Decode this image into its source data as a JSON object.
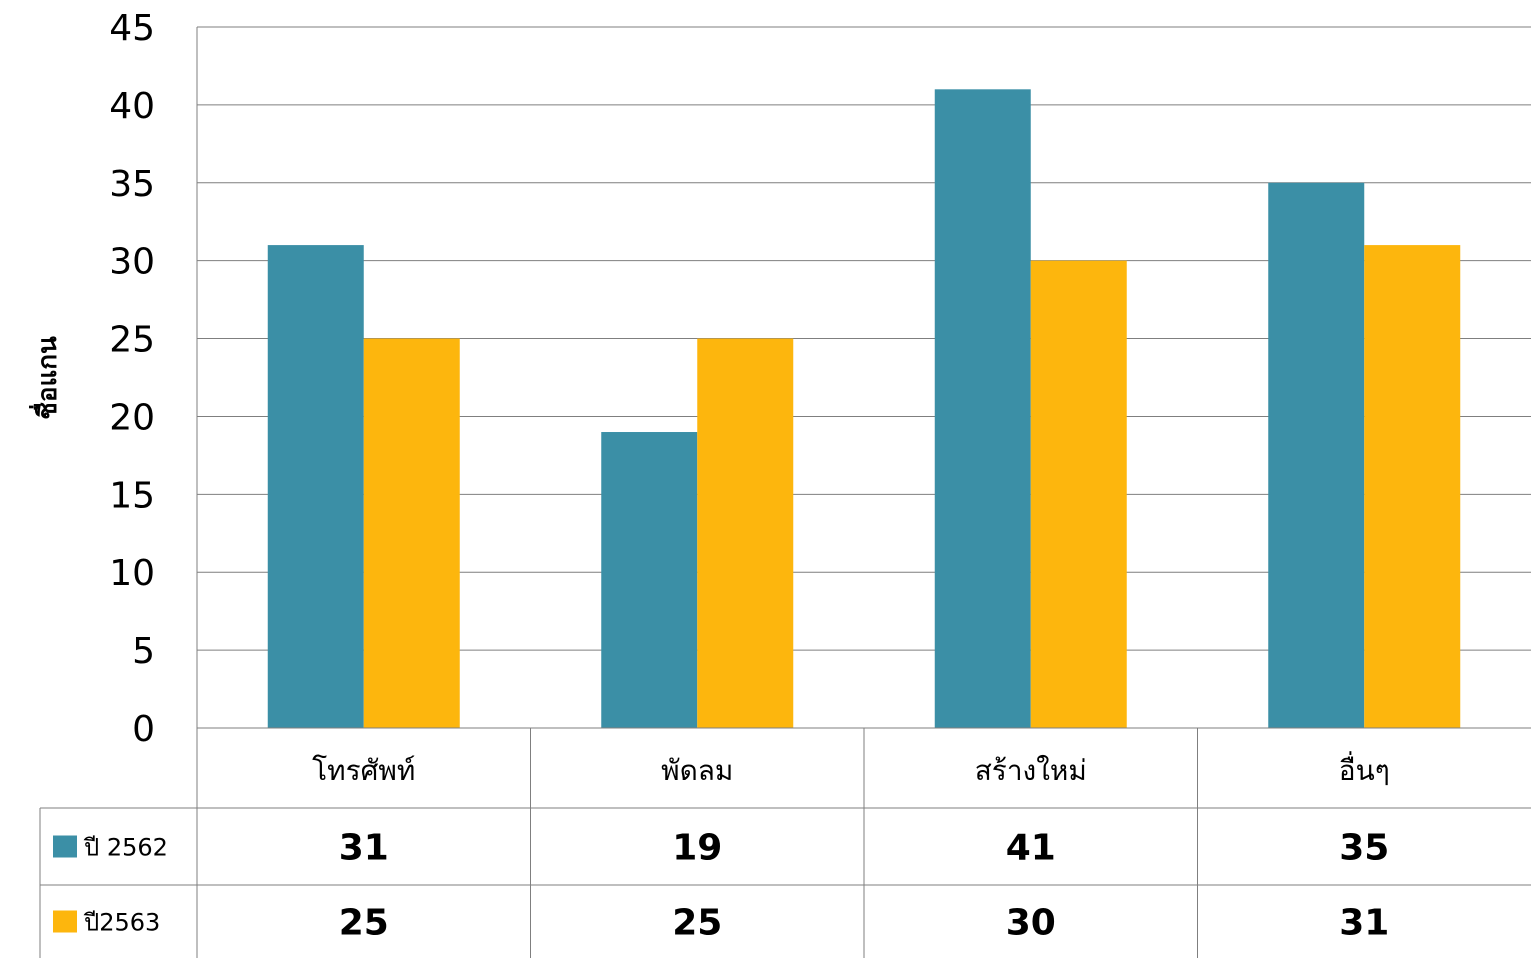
{
  "chart_data": {
    "type": "bar",
    "ylabel": "ชื่อแกน",
    "ylim": [
      0,
      45
    ],
    "y_ticks": [
      0,
      5,
      10,
      15,
      20,
      25,
      30,
      35,
      40,
      45
    ],
    "grid": true,
    "legend": "data-table",
    "categories": [
      "โทรศัพท์",
      "พัดลม",
      "สร้างใหม่",
      "อื่นๆ"
    ],
    "series": [
      {
        "name": "ปี 2562",
        "color": "#3b8fa6",
        "values": [
          31,
          19,
          41,
          35
        ]
      },
      {
        "name": "ปี2563",
        "color": "#fdb60d",
        "values": [
          25,
          25,
          30,
          31
        ]
      }
    ]
  }
}
